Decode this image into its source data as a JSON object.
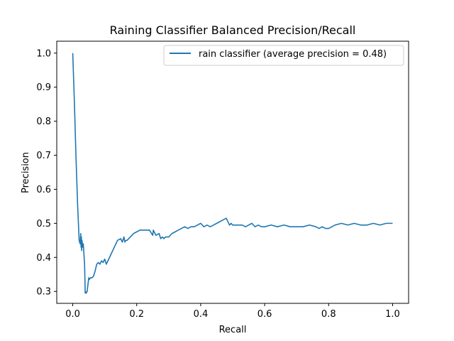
{
  "chart_data": {
    "type": "line",
    "title": "Raining Classifier Balanced Precision/Recall",
    "xlabel": "Recall",
    "ylabel": "Precision",
    "xlim": [
      -0.05,
      1.05
    ],
    "ylim": [
      0.265,
      1.035
    ],
    "xticks": [
      0.0,
      0.2,
      0.4,
      0.6,
      0.8,
      1.0
    ],
    "xtick_labels": [
      "0.0",
      "0.2",
      "0.4",
      "0.6",
      "0.8",
      "1.0"
    ],
    "yticks": [
      0.3,
      0.4,
      0.5,
      0.6,
      0.7,
      0.8,
      0.9,
      1.0
    ],
    "ytick_labels": [
      "0.3",
      "0.4",
      "0.5",
      "0.6",
      "0.7",
      "0.8",
      "0.9",
      "1.0"
    ],
    "grid": false,
    "legend_position": "upper right",
    "series": [
      {
        "name": "rain classifier (average precision = 0.48)",
        "color": "#1f77b4",
        "x": [
          0.0,
          0.005,
          0.01,
          0.015,
          0.02,
          0.023,
          0.025,
          0.026,
          0.027,
          0.028,
          0.029,
          0.03,
          0.031,
          0.033,
          0.035,
          0.037,
          0.039,
          0.04,
          0.042,
          0.045,
          0.05,
          0.052,
          0.055,
          0.06,
          0.065,
          0.07,
          0.075,
          0.08,
          0.085,
          0.09,
          0.095,
          0.1,
          0.105,
          0.11,
          0.12,
          0.13,
          0.14,
          0.15,
          0.155,
          0.16,
          0.163,
          0.166,
          0.17,
          0.18,
          0.19,
          0.2,
          0.21,
          0.22,
          0.23,
          0.24,
          0.25,
          0.252,
          0.26,
          0.27,
          0.275,
          0.28,
          0.285,
          0.29,
          0.3,
          0.31,
          0.32,
          0.33,
          0.34,
          0.35,
          0.36,
          0.37,
          0.38,
          0.39,
          0.4,
          0.41,
          0.42,
          0.43,
          0.44,
          0.45,
          0.46,
          0.47,
          0.48,
          0.49,
          0.495,
          0.5,
          0.51,
          0.52,
          0.53,
          0.54,
          0.55,
          0.56,
          0.57,
          0.58,
          0.59,
          0.6,
          0.62,
          0.64,
          0.66,
          0.68,
          0.7,
          0.72,
          0.74,
          0.76,
          0.77,
          0.78,
          0.79,
          0.8,
          0.82,
          0.84,
          0.86,
          0.88,
          0.9,
          0.92,
          0.94,
          0.96,
          0.98,
          1.0
        ],
        "y": [
          1.0,
          0.86,
          0.7,
          0.56,
          0.45,
          0.44,
          0.47,
          0.43,
          0.46,
          0.42,
          0.45,
          0.44,
          0.43,
          0.44,
          0.41,
          0.38,
          0.295,
          0.3,
          0.295,
          0.3,
          0.34,
          0.335,
          0.34,
          0.34,
          0.345,
          0.36,
          0.38,
          0.385,
          0.38,
          0.39,
          0.385,
          0.395,
          0.38,
          0.39,
          0.41,
          0.43,
          0.45,
          0.455,
          0.445,
          0.46,
          0.445,
          0.45,
          0.45,
          0.46,
          0.47,
          0.475,
          0.48,
          0.48,
          0.48,
          0.48,
          0.465,
          0.48,
          0.465,
          0.47,
          0.455,
          0.46,
          0.455,
          0.46,
          0.46,
          0.47,
          0.475,
          0.48,
          0.485,
          0.49,
          0.485,
          0.49,
          0.49,
          0.495,
          0.5,
          0.49,
          0.495,
          0.49,
          0.495,
          0.5,
          0.505,
          0.51,
          0.515,
          0.495,
          0.5,
          0.495,
          0.495,
          0.495,
          0.495,
          0.49,
          0.495,
          0.5,
          0.49,
          0.495,
          0.49,
          0.49,
          0.495,
          0.49,
          0.495,
          0.49,
          0.49,
          0.49,
          0.495,
          0.49,
          0.485,
          0.49,
          0.485,
          0.485,
          0.495,
          0.5,
          0.495,
          0.5,
          0.495,
          0.495,
          0.5,
          0.495,
          0.5,
          0.5
        ]
      }
    ]
  }
}
